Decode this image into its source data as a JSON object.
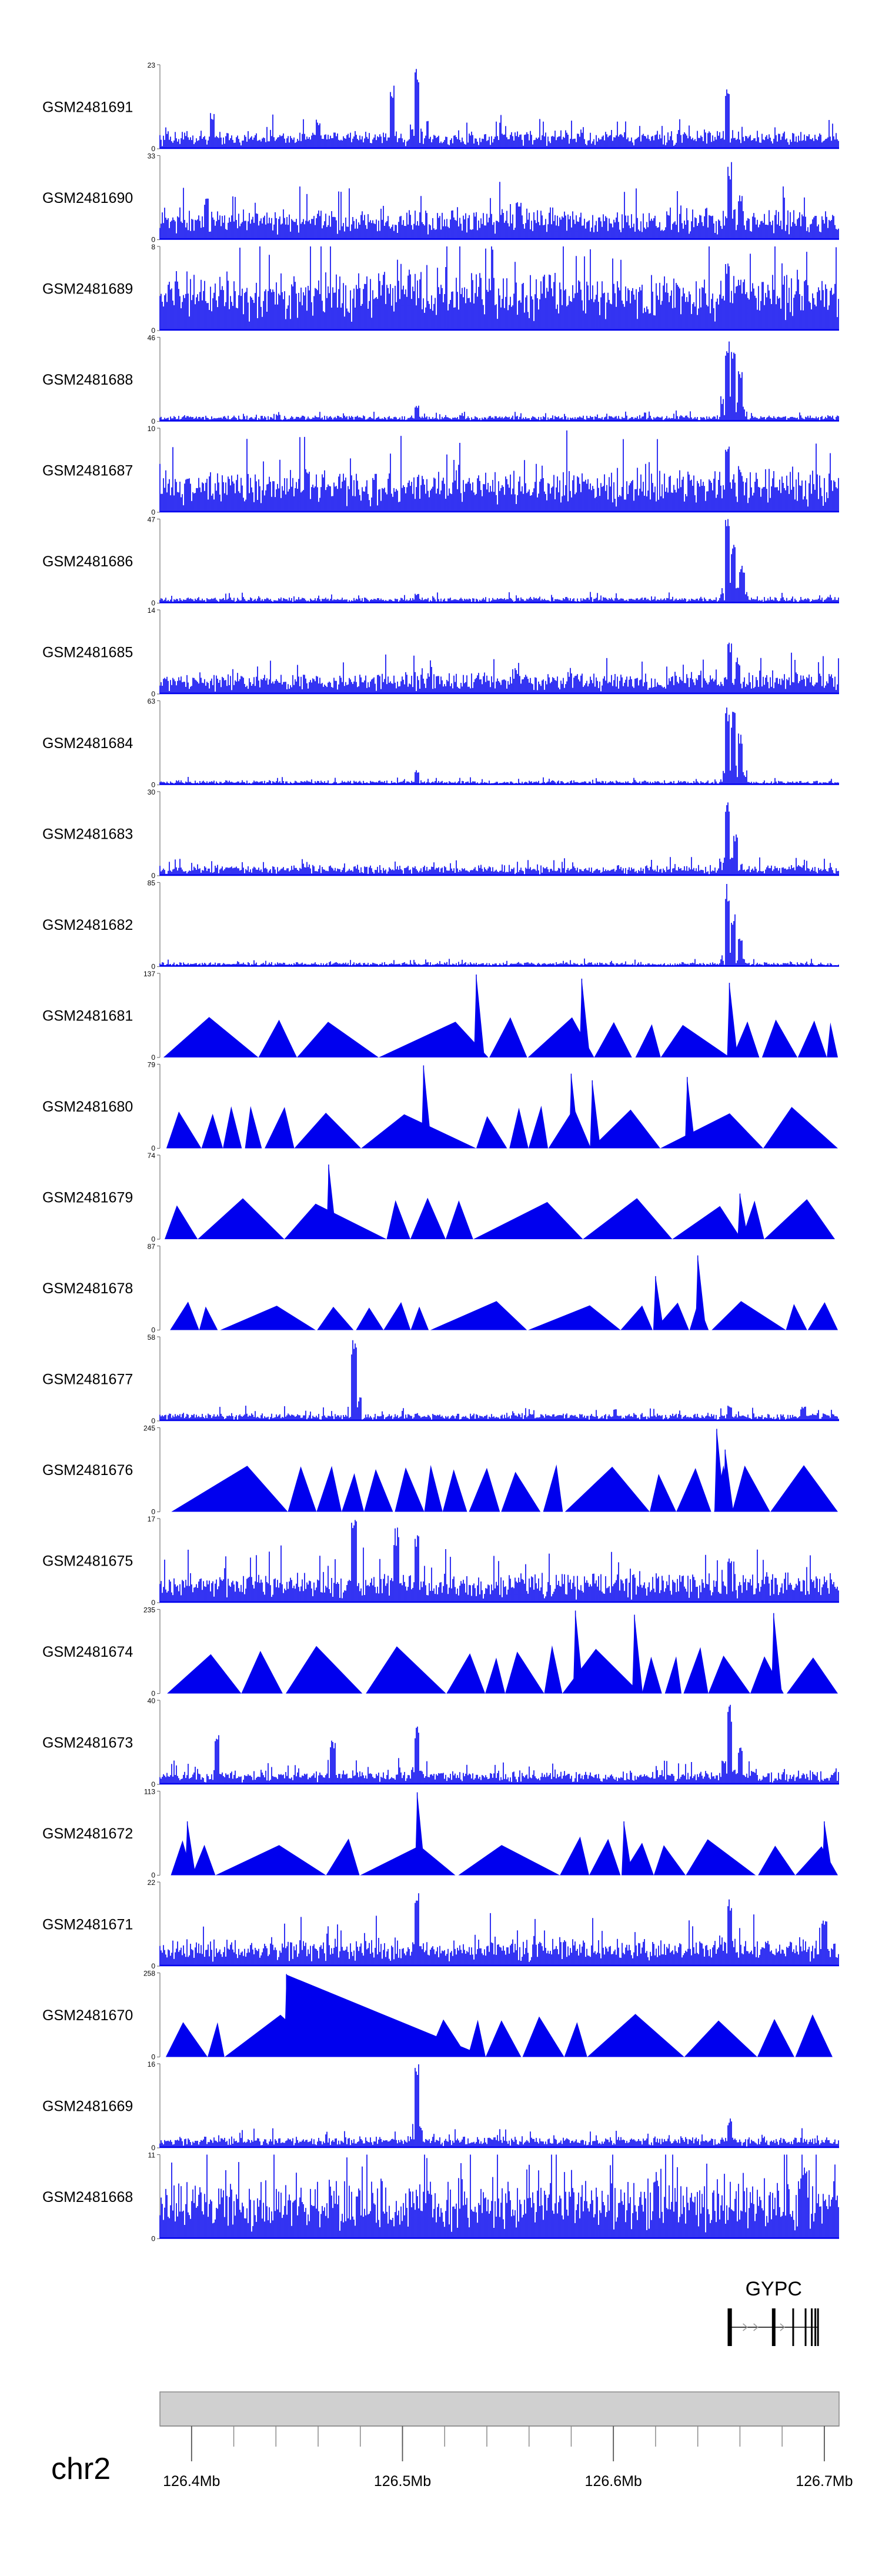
{
  "chart_data": {
    "type": "area",
    "title": "",
    "chromosome": "chr2",
    "xlim": [
      126.385,
      126.707
    ],
    "x_ticks": [
      "126.4Mb",
      "126.5Mb",
      "126.6Mb",
      "126.7Mb"
    ],
    "x_tick_values": [
      126.4,
      126.5,
      126.6,
      126.7
    ],
    "minor_tick_step": 0.02,
    "color": "#0000ee",
    "gene": {
      "name": "GYPC",
      "start": 126.655,
      "end": 126.697
    },
    "series": [
      {
        "name": "GSM2481691",
        "ymax": "23",
        "style": "dense",
        "base": 0.09,
        "noise": 0.12,
        "seed": 11,
        "peaks": [
          [
            126.41,
            0.45
          ],
          [
            126.46,
            0.35
          ],
          [
            126.495,
            0.8
          ],
          [
            126.507,
            1.0
          ],
          [
            126.654,
            0.75
          ]
        ]
      },
      {
        "name": "GSM2481690",
        "ymax": "33",
        "style": "dense",
        "base": 0.15,
        "noise": 0.2,
        "seed": 23,
        "peaks": [
          [
            126.407,
            0.5
          ],
          [
            126.555,
            0.48
          ],
          [
            126.655,
            0.95
          ],
          [
            126.66,
            0.6
          ]
        ]
      },
      {
        "name": "GSM2481689",
        "ymax": "8",
        "style": "dense",
        "base": 0.3,
        "noise": 0.35,
        "seed": 37,
        "peaks": [
          [
            126.654,
            0.85
          ],
          [
            126.659,
            0.6
          ]
        ]
      },
      {
        "name": "GSM2481688",
        "ymax": "46",
        "style": "dense",
        "base": 0.03,
        "noise": 0.04,
        "seed": 41,
        "peaks": [
          [
            126.507,
            0.2
          ],
          [
            126.654,
            1.0
          ],
          [
            126.657,
            0.85
          ],
          [
            126.66,
            0.6
          ]
        ]
      },
      {
        "name": "GSM2481687",
        "ymax": "10",
        "style": "dense",
        "base": 0.18,
        "noise": 0.3,
        "seed": 53,
        "peaks": [
          [
            126.455,
            0.55
          ],
          [
            126.654,
            0.85
          ],
          [
            126.66,
            0.55
          ]
        ]
      },
      {
        "name": "GSM2481686",
        "ymax": "47",
        "style": "dense",
        "base": 0.03,
        "noise": 0.04,
        "seed": 61,
        "peaks": [
          [
            126.507,
            0.12
          ],
          [
            126.654,
            1.0
          ],
          [
            126.657,
            0.7
          ],
          [
            126.661,
            0.45
          ]
        ]
      },
      {
        "name": "GSM2481685",
        "ymax": "14",
        "style": "dense",
        "base": 0.09,
        "noise": 0.16,
        "seed": 71,
        "peaks": [
          [
            126.655,
            0.65
          ],
          [
            126.659,
            0.45
          ]
        ]
      },
      {
        "name": "GSM2481684",
        "ymax": "63",
        "style": "dense",
        "base": 0.02,
        "noise": 0.03,
        "seed": 83,
        "peaks": [
          [
            126.507,
            0.18
          ],
          [
            126.654,
            1.0
          ],
          [
            126.657,
            0.9
          ],
          [
            126.66,
            0.65
          ]
        ]
      },
      {
        "name": "GSM2481683",
        "ymax": "30",
        "style": "dense",
        "base": 0.05,
        "noise": 0.07,
        "seed": 97,
        "peaks": [
          [
            126.654,
            0.95
          ],
          [
            126.658,
            0.5
          ]
        ]
      },
      {
        "name": "GSM2481682",
        "ymax": "85",
        "style": "dense",
        "base": 0.02,
        "noise": 0.03,
        "seed": 101,
        "peaks": [
          [
            126.654,
            1.0
          ],
          [
            126.657,
            0.65
          ],
          [
            126.66,
            0.35
          ]
        ]
      },
      {
        "name": "GSM2481681",
        "ymax": "137",
        "style": "tri",
        "h": 0.45,
        "seed": 113,
        "spikes": [
          [
            126.535,
            1.0
          ],
          [
            126.585,
            0.95
          ],
          [
            126.655,
            0.9
          ]
        ]
      },
      {
        "name": "GSM2481680",
        "ymax": "79",
        "style": "tri",
        "h": 0.45,
        "seed": 127,
        "spikes": [
          [
            126.51,
            1.0
          ],
          [
            126.58,
            0.9
          ],
          [
            126.59,
            0.82
          ],
          [
            126.635,
            0.86
          ]
        ]
      },
      {
        "name": "GSM2481679",
        "ymax": "74",
        "style": "tri",
        "h": 0.45,
        "seed": 131,
        "spikes": [
          [
            126.465,
            0.9
          ],
          [
            126.66,
            0.55
          ]
        ]
      },
      {
        "name": "GSM2481678",
        "ymax": "87",
        "style": "tri",
        "h": 0.3,
        "seed": 139,
        "spikes": [
          [
            126.62,
            0.65
          ],
          [
            126.64,
            0.9
          ]
        ]
      },
      {
        "name": "GSM2481677",
        "ymax": "58",
        "style": "dense",
        "base": 0.03,
        "noise": 0.06,
        "seed": 149,
        "peaks": [
          [
            126.477,
            1.0
          ],
          [
            126.655,
            0.2
          ],
          [
            126.69,
            0.18
          ]
        ]
      },
      {
        "name": "GSM2481676",
        "ymax": "245",
        "style": "tri",
        "h": 0.5,
        "seed": 157,
        "spikes": [
          [
            126.649,
            1.0
          ],
          [
            126.653,
            0.75
          ]
        ]
      },
      {
        "name": "GSM2481675",
        "ymax": "17",
        "style": "dense",
        "base": 0.12,
        "noise": 0.22,
        "seed": 163,
        "peaks": [
          [
            126.477,
            1.0
          ],
          [
            126.497,
            0.9
          ],
          [
            126.507,
            0.85
          ],
          [
            126.655,
            0.6
          ]
        ]
      },
      {
        "name": "GSM2481674",
        "ymax": "235",
        "style": "tri",
        "h": 0.5,
        "seed": 167,
        "spikes": [
          [
            126.582,
            1.0
          ],
          [
            126.61,
            0.95
          ],
          [
            126.676,
            0.97
          ]
        ]
      },
      {
        "name": "GSM2481673",
        "ymax": "40",
        "style": "dense",
        "base": 0.06,
        "noise": 0.1,
        "seed": 173,
        "peaks": [
          [
            126.412,
            0.65
          ],
          [
            126.467,
            0.55
          ],
          [
            126.507,
            0.7
          ],
          [
            126.655,
            0.95
          ],
          [
            126.66,
            0.45
          ]
        ]
      },
      {
        "name": "GSM2481672",
        "ymax": "113",
        "style": "tri",
        "h": 0.4,
        "seed": 179,
        "spikes": [
          [
            126.398,
            0.65
          ],
          [
            126.507,
            1.0
          ],
          [
            126.605,
            0.65
          ],
          [
            126.7,
            0.65
          ]
        ]
      },
      {
        "name": "GSM2481671",
        "ymax": "22",
        "style": "dense",
        "base": 0.12,
        "noise": 0.2,
        "seed": 181,
        "peaks": [
          [
            126.507,
            0.95
          ],
          [
            126.655,
            0.8
          ],
          [
            126.7,
            0.6
          ]
        ]
      },
      {
        "name": "GSM2481670",
        "ymax": "258",
        "style": "tri",
        "h": 0.45,
        "seed": 191,
        "spikes": [
          [
            126.445,
            1.0
          ]
        ],
        "wedge": [
          126.445,
          126.54
        ]
      },
      {
        "name": "GSM2481669",
        "ymax": "16",
        "style": "dense",
        "base": 0.05,
        "noise": 0.08,
        "seed": 193,
        "peaks": [
          [
            126.507,
            1.0
          ],
          [
            126.655,
            0.35
          ]
        ]
      },
      {
        "name": "GSM2481668",
        "ymax": "11",
        "style": "dense",
        "base": 0.22,
        "noise": 0.45,
        "seed": 197,
        "peaks": [
          [
            126.62,
            0.8
          ],
          [
            126.69,
            0.85
          ]
        ]
      }
    ]
  }
}
